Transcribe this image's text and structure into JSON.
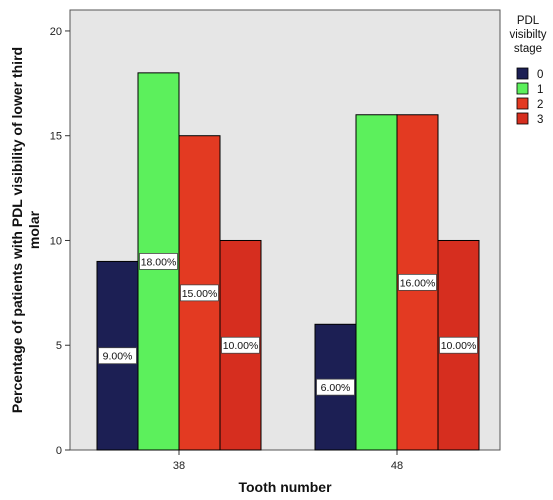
{
  "chart_data": {
    "type": "bar",
    "title": "",
    "xlabel": "Tooth number",
    "ylabel": "Percentage of patients with PDL visibility of lower third molar",
    "ylim": [
      0,
      21
    ],
    "yticks": [
      0,
      5,
      10,
      15,
      20
    ],
    "grid": false,
    "legend_position": "right",
    "legend_title": "PDL visibilty stage",
    "categories": [
      "38",
      "48"
    ],
    "series": [
      {
        "name": "0",
        "values": [
          9,
          6
        ],
        "labels": [
          "9.00%",
          "6.00%"
        ],
        "color": "#1c1f54"
      },
      {
        "name": "1",
        "values": [
          18,
          16
        ],
        "labels": [
          "18.00%",
          ""
        ],
        "color": "#5cf05c"
      },
      {
        "name": "2",
        "values": [
          15,
          16
        ],
        "labels": [
          "15.00%",
          "16.00%"
        ],
        "color": "#e33a22"
      },
      {
        "name": "3",
        "values": [
          10,
          10
        ],
        "labels": [
          "10.00%",
          "10.00%"
        ],
        "color": "#d62e1f"
      }
    ],
    "plot_background": "#e6e6e6"
  }
}
